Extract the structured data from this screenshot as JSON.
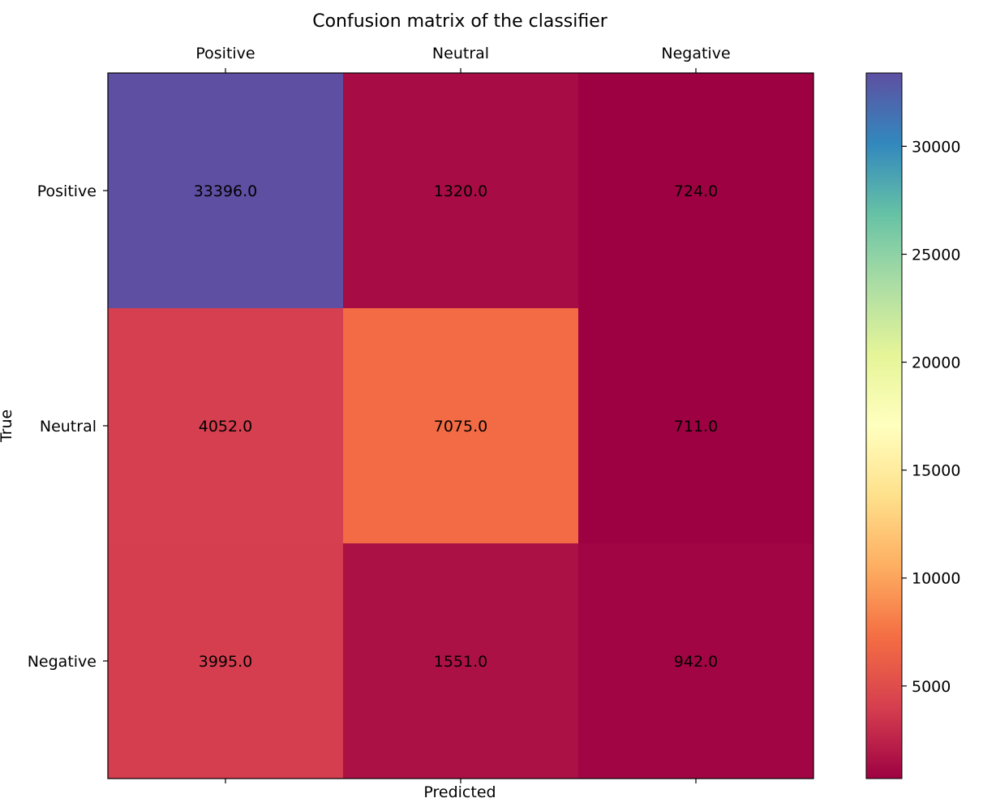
{
  "chart_data": {
    "type": "heatmap",
    "title": "Confusion matrix of the classifier",
    "xlabel": "Predicted",
    "ylabel": "True",
    "x_categories": [
      "Positive",
      "Neutral",
      "Negative"
    ],
    "y_categories": [
      "Positive",
      "Neutral",
      "Negative"
    ],
    "values": [
      [
        33396.0,
        1320.0,
        724.0
      ],
      [
        4052.0,
        7075.0,
        711.0
      ],
      [
        3995.0,
        1551.0,
        942.0
      ]
    ],
    "cell_labels": [
      [
        "33396.0",
        "1320.0",
        "724.0"
      ],
      [
        "4052.0",
        "7075.0",
        "711.0"
      ],
      [
        "3995.0",
        "1551.0",
        "942.0"
      ]
    ],
    "colormap": "Spectral",
    "colorbar": {
      "vmin": 711,
      "vmax": 33396,
      "ticks": [
        5000,
        10000,
        15000,
        20000,
        25000,
        30000
      ],
      "tick_labels": [
        "5000",
        "10000",
        "15000",
        "20000",
        "25000",
        "30000"
      ]
    },
    "x_tick_position": "top",
    "grid": false
  }
}
